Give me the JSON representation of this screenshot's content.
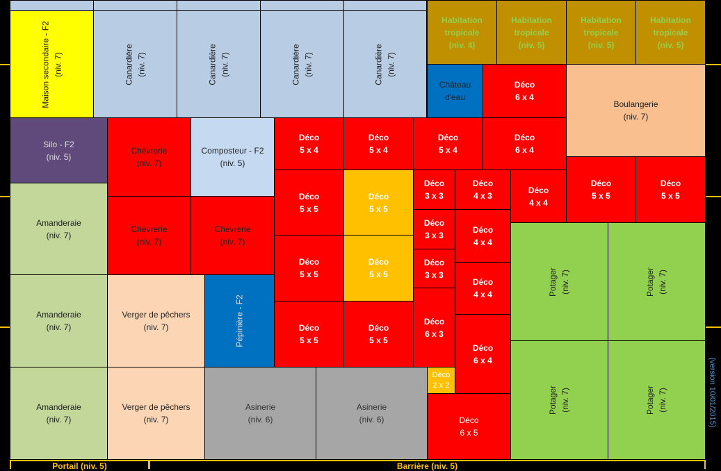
{
  "labels": {
    "maison": "Maison secondaire - F2\n(niv. 7)",
    "canardiere": "Canardière\n(niv. 7)",
    "habitation4": "Habitation\ntropicale\n(niv. 4)",
    "habitation5": "Habitation\ntropicale\n(niv. 5)",
    "chateau": "Château\nd'eau",
    "boulangerie": "Boulangerie\n(niv. 7)",
    "silo": "Silo - F2\n(niv. 5)",
    "chevrerie": "Chèvrerie\n(niv. 7)",
    "composteur": "Composteur - F2\n(niv. 5)",
    "amanderaie": "Amanderaie\n(niv. 7)",
    "verger": "Verger de pêchers\n(niv. 7)",
    "pepiniere": "Pépinière - F2",
    "asinerie": "Asinerie\n(niv. 6)",
    "potager": "Potager\n(niv. 7)",
    "deco_2x2": "Déco\n2 x 2",
    "deco_3x3": "Déco\n3 x 3",
    "deco_4x3": "Déco\n4 x 3",
    "deco_4x4": "Déco\n4 x 4",
    "deco_5x4": "Déco\n5 x 4",
    "deco_5x5": "Déco\n5 x 5",
    "deco_6x3": "Déco\n6 x 3",
    "deco_6x4": "Déco\n6 x 4",
    "deco_6x5": "Déco\n6 x 5"
  },
  "bottom": {
    "portail": "Portail (niv. 5)",
    "barriere": "Barrière (niv. 5)"
  },
  "version": "(version 10/01/2015)"
}
